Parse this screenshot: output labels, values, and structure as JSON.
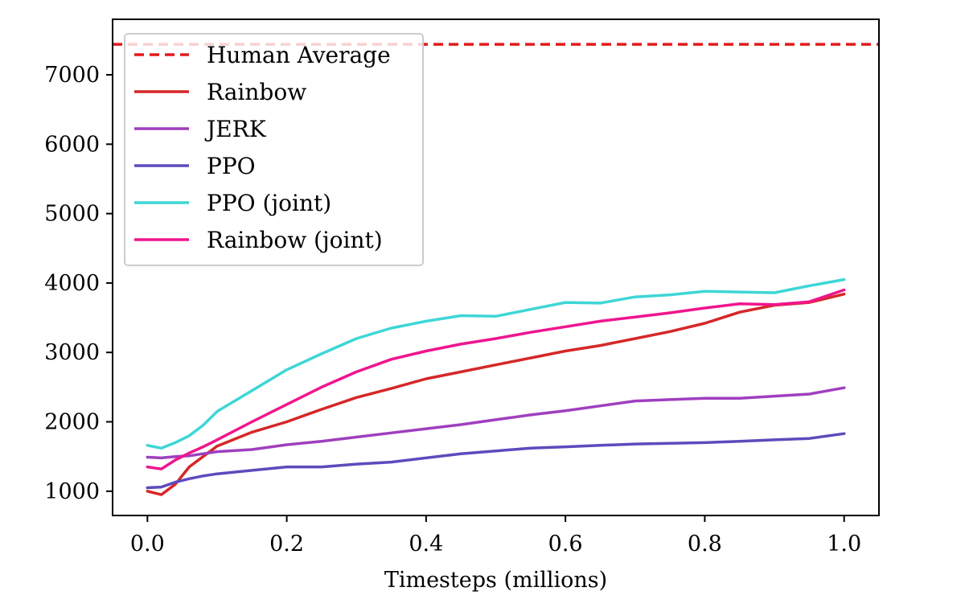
{
  "chart_data": {
    "type": "line",
    "title": "",
    "xlabel": "Timesteps (millions)",
    "ylabel": "",
    "xlim": [
      -0.05,
      1.05
    ],
    "ylim": [
      650,
      7800
    ],
    "xticks": [
      0.0,
      0.2,
      0.4,
      0.6,
      0.8,
      1.0
    ],
    "xtick_labels": [
      "0.0",
      "0.2",
      "0.4",
      "0.6",
      "0.8",
      "1.0"
    ],
    "yticks": [
      1000,
      2000,
      3000,
      4000,
      5000,
      6000,
      7000
    ],
    "ytick_labels": [
      "1000",
      "2000",
      "3000",
      "4000",
      "5000",
      "6000",
      "7000"
    ],
    "grid": false,
    "legend_position": "top-left",
    "reference_line": {
      "name": "Human Average",
      "value": 7440,
      "color": "#e31a1c",
      "dashed": true
    },
    "x": [
      0.0,
      0.02,
      0.04,
      0.06,
      0.08,
      0.1,
      0.15,
      0.2,
      0.25,
      0.3,
      0.35,
      0.4,
      0.45,
      0.5,
      0.55,
      0.6,
      0.65,
      0.7,
      0.75,
      0.8,
      0.85,
      0.9,
      0.95,
      1.0
    ],
    "series": [
      {
        "name": "Rainbow",
        "color": "#d62728",
        "values": [
          1000,
          950,
          1100,
          1350,
          1500,
          1650,
          1850,
          2000,
          2180,
          2350,
          2480,
          2620,
          2720,
          2820,
          2920,
          3020,
          3100,
          3200,
          3300,
          3420,
          3580,
          3680,
          3720,
          3840
        ]
      },
      {
        "name": "JERK",
        "color": "#9f3fbf",
        "values": [
          1490,
          1480,
          1500,
          1510,
          1540,
          1570,
          1600,
          1670,
          1720,
          1780,
          1840,
          1900,
          1960,
          2030,
          2100,
          2160,
          2230,
          2300,
          2320,
          2340,
          2340,
          2370,
          2400,
          2490
        ]
      },
      {
        "name": "PPO",
        "color": "#5d4bbd",
        "values": [
          1050,
          1060,
          1130,
          1180,
          1220,
          1250,
          1300,
          1350,
          1350,
          1390,
          1420,
          1480,
          1540,
          1580,
          1620,
          1640,
          1660,
          1680,
          1690,
          1700,
          1720,
          1740,
          1760,
          1830
        ]
      },
      {
        "name": "PPO (joint)",
        "color": "#3fd6d6",
        "values": [
          1660,
          1620,
          1700,
          1800,
          1950,
          2150,
          2450,
          2750,
          2980,
          3200,
          3350,
          3450,
          3530,
          3520,
          3620,
          3720,
          3710,
          3800,
          3830,
          3880,
          3870,
          3860,
          3960,
          4050
        ]
      },
      {
        "name": "Rainbow (joint)",
        "color": "#f0158e",
        "values": [
          1350,
          1320,
          1450,
          1550,
          1640,
          1740,
          2000,
          2250,
          2500,
          2720,
          2900,
          3020,
          3120,
          3200,
          3290,
          3370,
          3450,
          3510,
          3570,
          3640,
          3700,
          3690,
          3730,
          3900
        ]
      }
    ]
  }
}
